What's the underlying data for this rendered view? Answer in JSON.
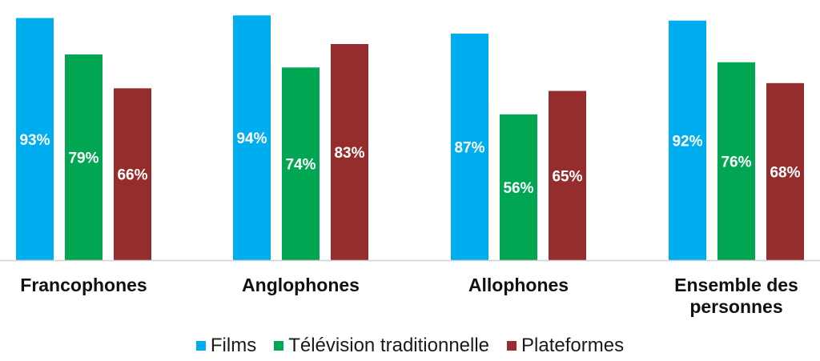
{
  "chart_data": {
    "type": "bar",
    "categories": [
      "Francophones",
      "Anglophones",
      "Allophones",
      "Ensemble des personnes"
    ],
    "category_lines": [
      [
        "Francophones"
      ],
      [
        "Anglophones"
      ],
      [
        "Allophones"
      ],
      [
        "Ensemble des",
        "personnes"
      ]
    ],
    "series": [
      {
        "name": "Films",
        "color": "#00AEEF",
        "values": [
          93,
          94,
          87,
          92
        ],
        "labels": [
          "93%",
          "94%",
          "87%",
          "92%"
        ]
      },
      {
        "name": "Télévision traditionnelle",
        "color": "#00A651",
        "values": [
          79,
          74,
          56,
          76
        ],
        "labels": [
          "79%",
          "74%",
          "56%",
          "76%"
        ]
      },
      {
        "name": "Plateformes",
        "color": "#962D2D",
        "values": [
          66,
          83,
          65,
          68
        ],
        "labels": [
          "66%",
          "83%",
          "65%",
          "68%"
        ]
      }
    ],
    "value_unit": "%",
    "ylim": [
      0,
      95
    ],
    "grid": false,
    "legend_position": "bottom"
  }
}
